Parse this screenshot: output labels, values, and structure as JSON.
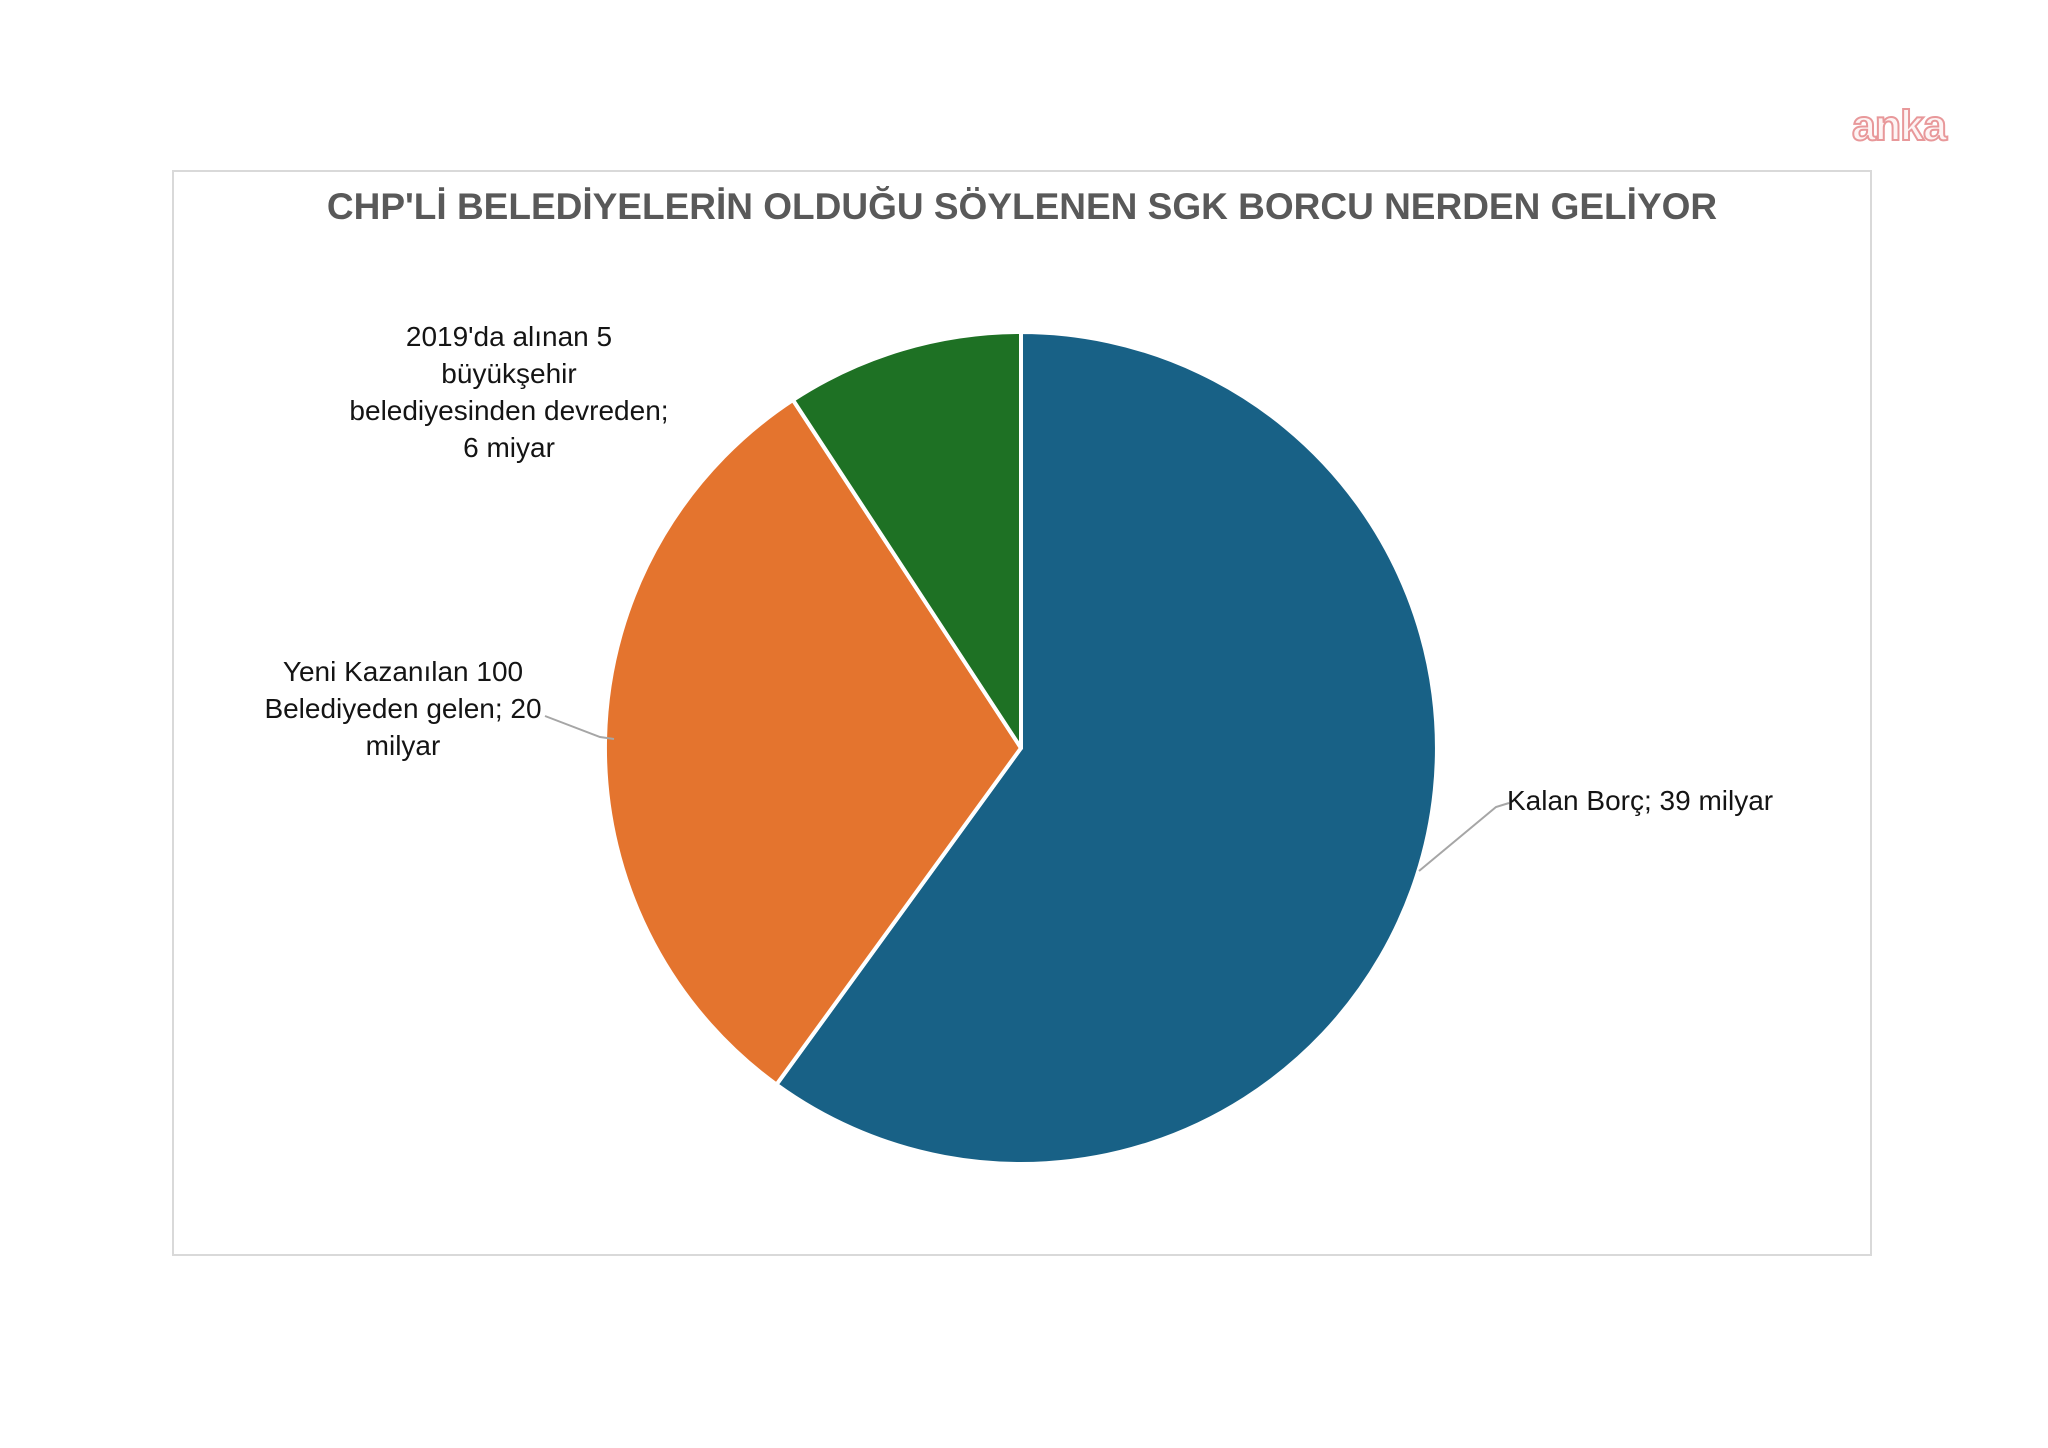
{
  "watermark": {
    "text": "anka",
    "color": "#e8989a"
  },
  "chart_data": {
    "type": "pie",
    "title": "CHP'Lİ BELEDİYELERİN OLDUĞU SÖYLENEN SGK BORCU NERDEN GELİYOR",
    "direction": "clockwise",
    "start_angle_deg": 0,
    "legend_position": "none",
    "total": 65,
    "slices": [
      {
        "name": "Kalan Borç",
        "value": 39,
        "color": "#186186",
        "label_text": "Kalan Borç; 39 milyar",
        "label_lines": [
          "Kalan Borç; 39 milyar"
        ]
      },
      {
        "name": "Yeni Kazanılan 100 Belediyeden gelen",
        "value": 20,
        "color": "#E4742E",
        "label_text": "Yeni Kazanılan 100 Belediyeden gelen; 20 milyar",
        "label_lines": [
          "Yeni Kazanılan 100",
          "Belediyeden gelen; 20",
          "milyar"
        ]
      },
      {
        "name": "2019'da alınan 5 büyükşehir belediyesinden devreden",
        "value": 6,
        "color": "#1E7124",
        "label_text": "2019'da alınan 5 büyükşehir belediyesinden devreden; 6 miyar",
        "label_lines": [
          "2019'da alınan 5",
          "büyükşehir",
          "belediyesinden devreden;",
          "6 miyar"
        ]
      }
    ],
    "leader_line_color": "#a6a6a6",
    "separator_color": "#ffffff"
  }
}
